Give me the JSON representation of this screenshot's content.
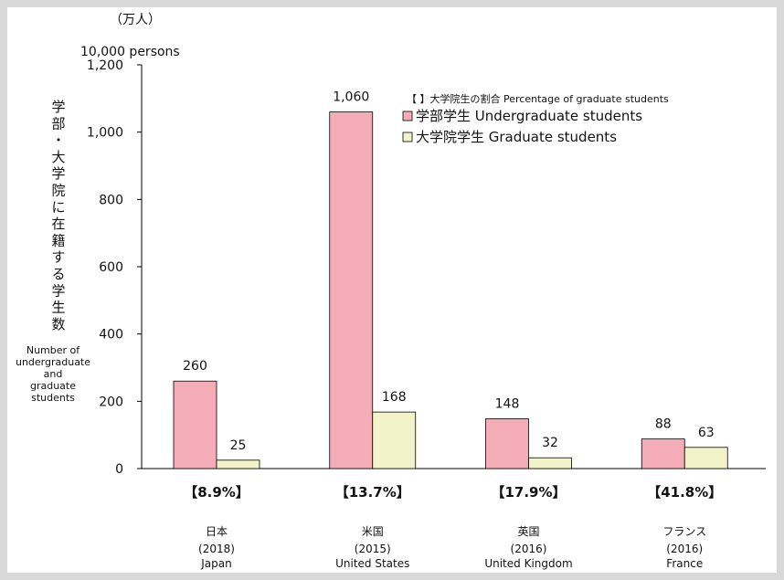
{
  "chart_data": {
    "type": "bar",
    "unit_jp": "（万人）",
    "unit_en": "10,000 persons",
    "ylabel_jp": "学部・大学院に在籍する学生数",
    "ylabel_en": [
      "Number of",
      "undergraduate",
      "and",
      "graduate",
      "students"
    ],
    "ylim": [
      0,
      1200
    ],
    "yticks": [
      0,
      200,
      400,
      600,
      800,
      1000,
      1200
    ],
    "ytick_labels": [
      "0",
      "200",
      "400",
      "600",
      "800",
      "1,000",
      "1,200"
    ],
    "categories": [
      {
        "jp": "日本",
        "year": "(2018)",
        "en": "Japan",
        "ratio": "【8.9%】"
      },
      {
        "jp": "米国",
        "year": "(2015)",
        "en": "United States",
        "ratio": "【13.7%】"
      },
      {
        "jp": "英国",
        "year": "(2016)",
        "en": "United Kingdom",
        "ratio": "【17.9%】"
      },
      {
        "jp": "フランス",
        "year": "(2016)",
        "en": "France",
        "ratio": "【41.8%】"
      }
    ],
    "series": [
      {
        "name": "学部学生 Undergraduate students",
        "color": "#f4acb7",
        "values": [
          260,
          1060,
          148,
          88
        ],
        "labels": [
          "260",
          "1,060",
          "148",
          "88"
        ]
      },
      {
        "name": "大学院学生 Graduate students",
        "color": "#f3f3c9",
        "values": [
          25,
          168,
          32,
          63
        ],
        "labels": [
          "25",
          "168",
          "32",
          "63"
        ]
      }
    ],
    "legend_note": "【 】大学院生の割合  Percentage of graduate students",
    "legend_position": "top-right"
  }
}
